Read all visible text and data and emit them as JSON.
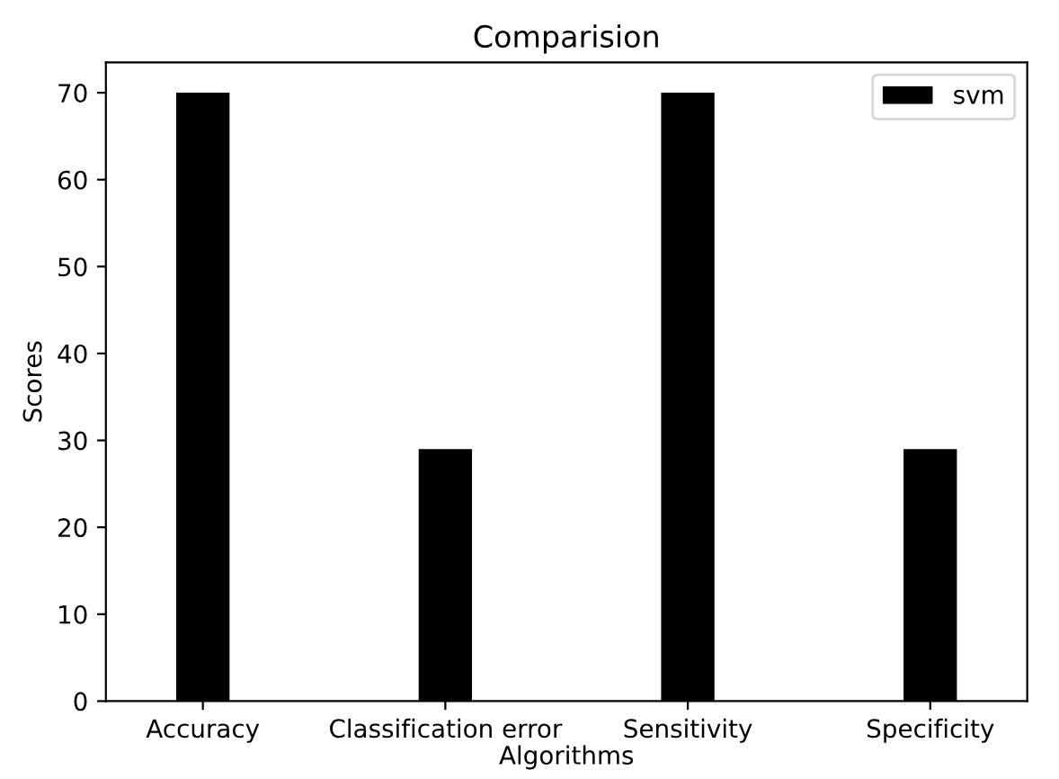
{
  "chart_data": {
    "type": "bar",
    "title": "Comparision",
    "xlabel": "Algorithms",
    "ylabel": "Scores",
    "categories": [
      "Accuracy",
      "Classification error",
      "Sensitivity",
      "Specificity"
    ],
    "series": [
      {
        "name": "svm",
        "color": "#000000",
        "values": [
          70,
          29,
          70,
          29
        ]
      }
    ],
    "ylim": [
      0,
      73.5
    ],
    "yticks": [
      0,
      10,
      20,
      30,
      40,
      50,
      60,
      70
    ],
    "grid": false,
    "legend": "top right"
  }
}
